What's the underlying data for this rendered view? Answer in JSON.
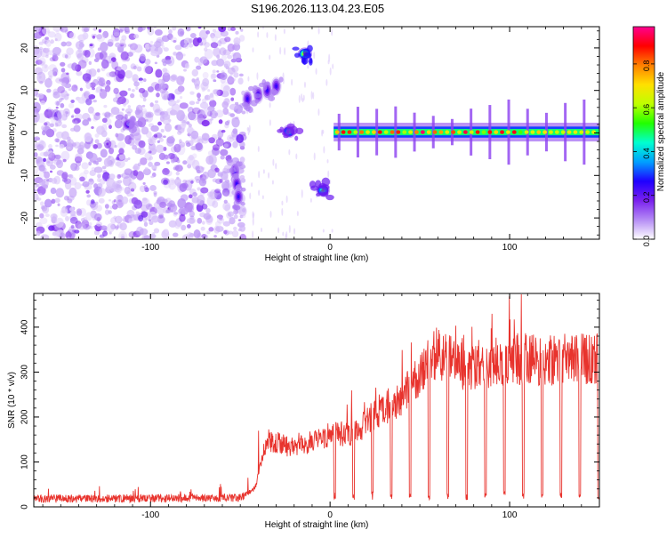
{
  "title": "S196.2026.113.04.23.E05",
  "colors": {
    "snr_line": "#e8332d",
    "colormap": [
      "#ffffff",
      "#b58cf5",
      "#7a20ee",
      "#1f00ff",
      "#00a0ff",
      "#00ffd0",
      "#22ff00",
      "#bfff00",
      "#ffe000",
      "#ff8000",
      "#ff0000",
      "#ff0090"
    ]
  },
  "chart_data": [
    {
      "type": "heatmap",
      "name": "spectrogram",
      "xlabel": "Height of straight line (km)",
      "ylabel": "Frequency (Hz)",
      "xlim": [
        -165,
        150
      ],
      "ylim": [
        -25,
        25
      ],
      "xticks": [
        -100,
        0,
        100
      ],
      "xtick_labels": [
        "-100",
        "0",
        "100"
      ],
      "yticks": [
        -20,
        -10,
        0,
        10,
        20
      ],
      "ytick_labels": [
        "-20",
        "-10",
        "0",
        "10",
        "20"
      ],
      "colorbar": {
        "label": "Normalized spectral amplitude",
        "range": [
          0,
          0.97
        ],
        "ticks": [
          0,
          0.2,
          0.4,
          0.6,
          0.8
        ],
        "tick_labels": [
          "0.0",
          "0.2",
          "0.4",
          "0.6",
          "0.8"
        ]
      },
      "features": [
        {
          "kind": "noise",
          "x_range": [
            -165,
            -48
          ],
          "y_range": [
            -25,
            25
          ],
          "amplitude": 0.1
        },
        {
          "kind": "blob",
          "x": -112,
          "y": 2,
          "amplitude": 0.3
        },
        {
          "kind": "track",
          "points": [
            [
              -46,
              8
            ],
            [
              -40,
              9
            ],
            [
              -35,
              10
            ],
            [
              -30,
              11
            ]
          ],
          "amplitude": 0.25
        },
        {
          "kind": "blob",
          "x": -23,
          "y": 0.3,
          "amplitude": 0.5
        },
        {
          "kind": "blob",
          "x": -14,
          "y": 18.6,
          "amplitude": 0.75
        },
        {
          "kind": "track",
          "points": [
            [
              -53,
              -9
            ],
            [
              -52,
              -12
            ],
            [
              -51,
              -15
            ]
          ],
          "amplitude": 0.25
        },
        {
          "kind": "blob",
          "x": -4,
          "y": -13.5,
          "amplitude": 0.55
        },
        {
          "kind": "band",
          "x_range": [
            2,
            150
          ],
          "y": 0.2,
          "amplitude": 0.85
        }
      ]
    },
    {
      "type": "line",
      "name": "snr",
      "xlabel": "Height of straight line (km)",
      "ylabel": "SNR (10 * v/v)",
      "xlim": [
        -165,
        150
      ],
      "ylim": [
        0,
        475
      ],
      "xticks": [
        -100,
        0,
        100
      ],
      "xtick_labels": [
        "-100",
        "0",
        "100"
      ],
      "yticks": [
        0,
        100,
        200,
        300,
        400
      ],
      "ytick_labels": [
        "0",
        "100",
        "200",
        "300",
        "400"
      ],
      "envelope": {
        "x": [
          -165,
          -50,
          -42,
          -35,
          -20,
          0,
          15,
          25,
          40,
          50,
          60,
          75,
          100,
          125,
          150
        ],
        "y": [
          18,
          20,
          40,
          150,
          130,
          160,
          165,
          210,
          240,
          300,
          345,
          310,
          330,
          325,
          330
        ]
      },
      "dips": {
        "start": 2,
        "end": 150,
        "spacing": 10.5,
        "value": 15
      }
    }
  ]
}
